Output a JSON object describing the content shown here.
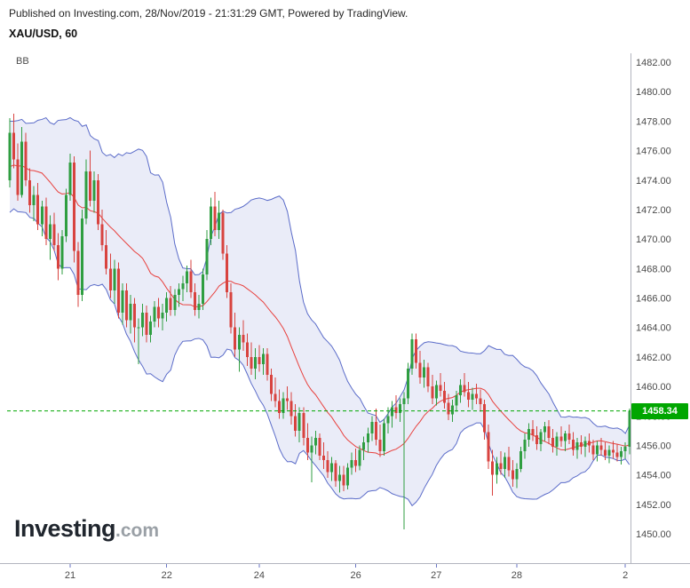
{
  "header": {
    "published": "Published on Investing.com, 28/Nov/2019 - 21:31:29 GMT, Powered by TradingView.",
    "symbol": "XAU/USD, 60"
  },
  "indicator": {
    "label": "BB"
  },
  "watermark": {
    "brand": "Investing",
    "suffix": ".com"
  },
  "current_price": {
    "value": "1458.34",
    "color": "#00a600"
  },
  "chart_data": {
    "type": "candlestick",
    "title": "XAU/USD, 60",
    "symbol": "XAU/USD",
    "interval": "60",
    "last_price": 1458.34,
    "ylim": [
      1450,
      1482
    ],
    "y_tick_step": 2,
    "grid": false,
    "y_tick_labels": [
      "1482.00",
      "1480.00",
      "1478.00",
      "1476.00",
      "1474.00",
      "1472.00",
      "1470.00",
      "1468.00",
      "1466.00",
      "1464.00",
      "1462.00",
      "1460.00",
      "1458.00",
      "1456.00",
      "1454.00",
      "1452.00",
      "1450.00"
    ],
    "day_ticks": [
      {
        "label": "21",
        "index": 15
      },
      {
        "label": "22",
        "index": 39
      },
      {
        "label": "24",
        "index": 62
      },
      {
        "label": "26",
        "index": 86
      },
      {
        "label": "27",
        "index": 106
      },
      {
        "label": "28",
        "index": 126
      },
      {
        "label": "2",
        "index": 153
      }
    ],
    "overlay": {
      "name": "BB",
      "period": 20,
      "stddev": 2
    },
    "colors": {
      "up": "#2f9e41",
      "down": "#d8433f",
      "band": "#5b6cc9",
      "band_fill": "rgba(91,108,201,0.13)",
      "middle": "#e8413e",
      "current": "#00a600",
      "axis_text": "#4a4a4a",
      "border": "#b2b5be",
      "tick": "#6a76c4"
    },
    "bb_seed_closes": [
      1471.5,
      1473.0,
      1474.5,
      1476.0,
      1477.0,
      1475.5,
      1473.5,
      1472.5,
      1474.0,
      1476.0,
      1477.2,
      1476.4,
      1474.6,
      1473.0,
      1472.4,
      1474.0,
      1475.6,
      1476.6,
      1475.2,
      1473.8
    ],
    "candles": [
      [
        1474.0,
        1478.2,
        1473.5,
        1477.2
      ],
      [
        1477.2,
        1478.5,
        1474.8,
        1475.4
      ],
      [
        1475.4,
        1476.5,
        1472.6,
        1473.0
      ],
      [
        1473.0,
        1477.6,
        1472.8,
        1476.6
      ],
      [
        1476.6,
        1477.2,
        1473.6,
        1474.0
      ],
      [
        1474.0,
        1474.8,
        1471.8,
        1472.3
      ],
      [
        1472.3,
        1473.6,
        1471.2,
        1473.0
      ],
      [
        1473.0,
        1473.8,
        1470.6,
        1471.0
      ],
      [
        1471.0,
        1472.6,
        1470.2,
        1472.2
      ],
      [
        1472.2,
        1472.8,
        1469.6,
        1470.0
      ],
      [
        1470.0,
        1471.6,
        1468.6,
        1471.0
      ],
      [
        1471.0,
        1471.8,
        1469.2,
        1469.6
      ],
      [
        1469.6,
        1470.4,
        1467.2,
        1468.0
      ],
      [
        1468.0,
        1470.6,
        1467.6,
        1470.2
      ],
      [
        1470.2,
        1473.4,
        1469.8,
        1473.0
      ],
      [
        1473.0,
        1475.8,
        1472.6,
        1475.2
      ],
      [
        1475.2,
        1475.6,
        1468.4,
        1469.2
      ],
      [
        1469.2,
        1469.8,
        1465.4,
        1466.2
      ],
      [
        1466.2,
        1472.0,
        1465.8,
        1471.4
      ],
      [
        1471.4,
        1475.4,
        1471.0,
        1474.6
      ],
      [
        1474.6,
        1476.0,
        1472.2,
        1472.6
      ],
      [
        1472.6,
        1474.6,
        1471.8,
        1474.0
      ],
      [
        1474.0,
        1474.4,
        1470.6,
        1471.0
      ],
      [
        1471.0,
        1472.0,
        1469.2,
        1469.6
      ],
      [
        1469.6,
        1470.6,
        1467.6,
        1468.0
      ],
      [
        1468.0,
        1469.0,
        1466.0,
        1466.5
      ],
      [
        1466.5,
        1468.6,
        1465.6,
        1468.0
      ],
      [
        1468.0,
        1468.4,
        1464.6,
        1465.0
      ],
      [
        1465.0,
        1467.0,
        1464.2,
        1466.5
      ],
      [
        1466.5,
        1467.0,
        1464.0,
        1464.5
      ],
      [
        1464.5,
        1466.2,
        1463.6,
        1465.6
      ],
      [
        1465.6,
        1466.0,
        1463.0,
        1464.0
      ],
      [
        1464.0,
        1464.6,
        1461.5,
        1464.0
      ],
      [
        1464.0,
        1465.6,
        1463.4,
        1465.0
      ],
      [
        1465.0,
        1465.5,
        1463.0,
        1463.5
      ],
      [
        1463.5,
        1464.8,
        1463.0,
        1464.4
      ],
      [
        1464.4,
        1465.8,
        1464.0,
        1465.4
      ],
      [
        1465.4,
        1466.0,
        1464.0,
        1464.6
      ],
      [
        1464.6,
        1465.6,
        1463.8,
        1465.0
      ],
      [
        1465.0,
        1466.4,
        1464.4,
        1466.0
      ],
      [
        1466.0,
        1466.8,
        1464.8,
        1465.2
      ],
      [
        1465.2,
        1466.6,
        1464.8,
        1466.2
      ],
      [
        1466.2,
        1467.0,
        1465.4,
        1466.6
      ],
      [
        1466.6,
        1467.5,
        1465.8,
        1467.0
      ],
      [
        1467.0,
        1468.2,
        1466.4,
        1467.8
      ],
      [
        1467.8,
        1468.6,
        1466.0,
        1466.4
      ],
      [
        1466.4,
        1467.0,
        1464.8,
        1465.2
      ],
      [
        1465.2,
        1466.2,
        1464.6,
        1465.6
      ],
      [
        1465.6,
        1468.0,
        1465.2,
        1467.6
      ],
      [
        1467.6,
        1470.6,
        1467.2,
        1470.0
      ],
      [
        1470.0,
        1472.8,
        1469.6,
        1472.2
      ],
      [
        1472.2,
        1473.2,
        1470.2,
        1470.6
      ],
      [
        1470.6,
        1472.6,
        1470.0,
        1471.8
      ],
      [
        1471.8,
        1472.0,
        1468.6,
        1469.0
      ],
      [
        1469.0,
        1469.6,
        1466.0,
        1466.4
      ],
      [
        1466.4,
        1467.0,
        1463.6,
        1464.0
      ],
      [
        1464.0,
        1465.0,
        1462.0,
        1462.5
      ],
      [
        1462.5,
        1464.0,
        1461.0,
        1463.5
      ],
      [
        1463.5,
        1464.5,
        1462.4,
        1463.0
      ],
      [
        1463.0,
        1463.6,
        1461.4,
        1462.0
      ],
      [
        1462.0,
        1463.0,
        1460.8,
        1461.2
      ],
      [
        1461.2,
        1462.6,
        1460.5,
        1462.0
      ],
      [
        1462.0,
        1462.8,
        1461.0,
        1461.5
      ],
      [
        1461.5,
        1462.6,
        1460.8,
        1462.2
      ],
      [
        1462.2,
        1462.6,
        1460.4,
        1460.8
      ],
      [
        1460.8,
        1461.2,
        1459.0,
        1459.5
      ],
      [
        1459.5,
        1460.6,
        1458.6,
        1459.0
      ],
      [
        1459.0,
        1459.8,
        1457.8,
        1458.2
      ],
      [
        1458.2,
        1459.6,
        1457.8,
        1459.2
      ],
      [
        1459.2,
        1460.0,
        1458.4,
        1459.0
      ],
      [
        1459.0,
        1459.6,
        1457.4,
        1458.0
      ],
      [
        1458.0,
        1458.8,
        1456.6,
        1457.0
      ],
      [
        1457.0,
        1458.6,
        1456.2,
        1458.2
      ],
      [
        1458.2,
        1458.6,
        1456.0,
        1456.5
      ],
      [
        1456.5,
        1457.5,
        1455.0,
        1455.5
      ],
      [
        1455.5,
        1456.6,
        1453.5,
        1456.0
      ],
      [
        1456.0,
        1457.0,
        1455.4,
        1456.5
      ],
      [
        1456.5,
        1456.8,
        1455.0,
        1455.3
      ],
      [
        1455.3,
        1456.2,
        1454.4,
        1455.0
      ],
      [
        1455.0,
        1455.6,
        1453.8,
        1454.2
      ],
      [
        1454.2,
        1455.2,
        1453.6,
        1454.8
      ],
      [
        1454.8,
        1455.0,
        1453.2,
        1453.6
      ],
      [
        1453.6,
        1454.6,
        1452.8,
        1454.0
      ],
      [
        1454.0,
        1454.6,
        1452.9,
        1453.3
      ],
      [
        1453.3,
        1454.8,
        1453.0,
        1454.5
      ],
      [
        1454.5,
        1455.5,
        1454.0,
        1455.0
      ],
      [
        1455.0,
        1455.8,
        1454.2,
        1454.6
      ],
      [
        1454.6,
        1456.0,
        1454.3,
        1455.7
      ],
      [
        1455.7,
        1456.6,
        1455.0,
        1456.2
      ],
      [
        1456.2,
        1457.2,
        1455.5,
        1456.8
      ],
      [
        1456.8,
        1458.0,
        1456.3,
        1457.6
      ],
      [
        1457.6,
        1458.5,
        1456.0,
        1456.4
      ],
      [
        1456.4,
        1457.4,
        1455.2,
        1455.6
      ],
      [
        1455.6,
        1457.8,
        1455.3,
        1457.5
      ],
      [
        1457.5,
        1458.6,
        1456.8,
        1458.0
      ],
      [
        1458.0,
        1459.0,
        1457.2,
        1458.6
      ],
      [
        1458.6,
        1459.4,
        1457.8,
        1458.2
      ],
      [
        1458.2,
        1459.2,
        1457.6,
        1458.8
      ],
      [
        1458.8,
        1459.6,
        1450.3,
        1459.2
      ],
      [
        1459.2,
        1461.6,
        1458.8,
        1461.2
      ],
      [
        1461.2,
        1463.6,
        1460.8,
        1463.2
      ],
      [
        1463.2,
        1463.6,
        1461.2,
        1461.6
      ],
      [
        1461.6,
        1462.4,
        1460.2,
        1460.6
      ],
      [
        1460.6,
        1461.8,
        1459.9,
        1461.3
      ],
      [
        1461.3,
        1461.6,
        1459.6,
        1460.0
      ],
      [
        1460.0,
        1460.8,
        1458.8,
        1459.2
      ],
      [
        1459.2,
        1460.4,
        1458.7,
        1460.1
      ],
      [
        1460.1,
        1460.9,
        1459.3,
        1459.7
      ],
      [
        1459.7,
        1460.3,
        1458.5,
        1458.9
      ],
      [
        1458.9,
        1459.5,
        1457.7,
        1458.1
      ],
      [
        1458.1,
        1459.1,
        1457.6,
        1458.7
      ],
      [
        1458.7,
        1459.7,
        1458.3,
        1459.4
      ],
      [
        1459.4,
        1460.5,
        1458.9,
        1460.1
      ],
      [
        1460.1,
        1460.9,
        1459.3,
        1459.6
      ],
      [
        1459.6,
        1460.3,
        1458.6,
        1459.1
      ],
      [
        1459.1,
        1459.9,
        1458.4,
        1459.5
      ],
      [
        1459.5,
        1460.2,
        1458.8,
        1459.2
      ],
      [
        1459.2,
        1459.8,
        1458.3,
        1458.8
      ],
      [
        1458.8,
        1459.1,
        1456.4,
        1456.9
      ],
      [
        1456.9,
        1457.4,
        1454.4,
        1454.9
      ],
      [
        1454.9,
        1455.7,
        1452.6,
        1454.0
      ],
      [
        1454.0,
        1455.2,
        1453.4,
        1454.8
      ],
      [
        1454.8,
        1455.6,
        1454.0,
        1454.4
      ],
      [
        1454.4,
        1455.5,
        1453.8,
        1455.2
      ],
      [
        1455.2,
        1455.9,
        1453.9,
        1454.3
      ],
      [
        1454.3,
        1455.0,
        1453.2,
        1453.7
      ],
      [
        1453.7,
        1454.8,
        1453.1,
        1454.4
      ],
      [
        1454.4,
        1455.9,
        1454.2,
        1455.6
      ],
      [
        1455.6,
        1456.8,
        1455.1,
        1456.4
      ],
      [
        1456.4,
        1457.5,
        1455.9,
        1457.1
      ],
      [
        1457.1,
        1457.7,
        1456.3,
        1456.7
      ],
      [
        1456.7,
        1457.3,
        1455.7,
        1456.1
      ],
      [
        1456.1,
        1457.1,
        1455.6,
        1456.9
      ],
      [
        1456.9,
        1457.6,
        1456.3,
        1457.3
      ],
      [
        1457.3,
        1457.7,
        1456.1,
        1456.5
      ],
      [
        1456.5,
        1457.1,
        1455.5,
        1455.9
      ],
      [
        1455.9,
        1456.9,
        1455.3,
        1456.6
      ],
      [
        1456.6,
        1457.3,
        1455.9,
        1456.3
      ],
      [
        1456.3,
        1457.0,
        1455.6,
        1456.8
      ],
      [
        1456.8,
        1457.4,
        1456.1,
        1456.4
      ],
      [
        1456.4,
        1456.9,
        1455.3,
        1455.7
      ],
      [
        1455.7,
        1456.5,
        1455.1,
        1456.2
      ],
      [
        1456.2,
        1456.7,
        1455.4,
        1455.9
      ],
      [
        1455.9,
        1456.6,
        1455.2,
        1456.3
      ],
      [
        1456.3,
        1456.8,
        1455.5,
        1456.0
      ],
      [
        1456.0,
        1456.4,
        1455.0,
        1455.4
      ],
      [
        1455.4,
        1456.3,
        1454.9,
        1456.0
      ],
      [
        1456.0,
        1456.5,
        1455.3,
        1455.7
      ],
      [
        1455.7,
        1456.2,
        1455.0,
        1455.3
      ],
      [
        1455.3,
        1456.0,
        1454.8,
        1455.7
      ],
      [
        1455.7,
        1456.3,
        1455.1,
        1455.5
      ],
      [
        1455.5,
        1456.1,
        1454.9,
        1455.2
      ],
      [
        1455.2,
        1455.9,
        1454.7,
        1455.6
      ],
      [
        1455.6,
        1456.2,
        1455.1,
        1455.9
      ],
      [
        1455.9,
        1458.5,
        1455.4,
        1458.34
      ]
    ]
  }
}
